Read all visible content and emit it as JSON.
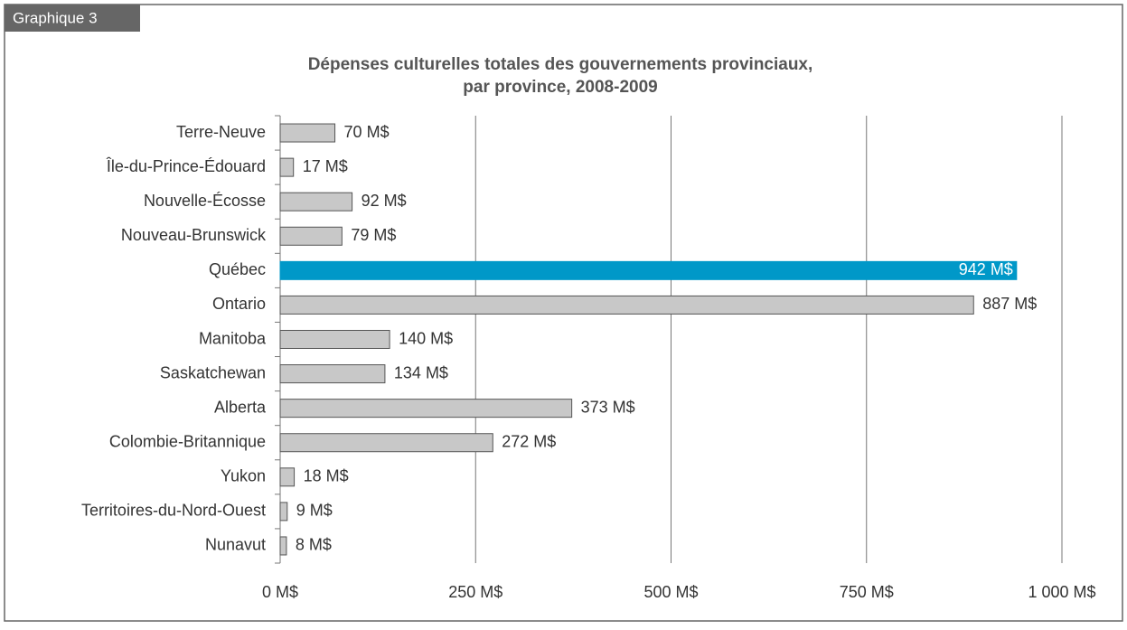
{
  "chart_data": {
    "type": "hbar",
    "figure_label": "Graphique 3",
    "title": "Dépenses culturelles totales des gouvernements provinciaux,",
    "subtitle": "par province, 2008-2009",
    "categories": [
      "Terre-Neuve",
      "Île-du-Prince-Édouard",
      "Nouvelle-Écosse",
      "Nouveau-Brunswick",
      "Québec",
      "Ontario",
      "Manitoba",
      "Saskatchewan",
      "Alberta",
      "Colombie-Britannique",
      "Yukon",
      "Territoires-du-Nord-Ouest",
      "Nunavut"
    ],
    "values": [
      70,
      17,
      92,
      79,
      942,
      887,
      140,
      134,
      373,
      272,
      18,
      9,
      8
    ],
    "value_labels": [
      "70 M$",
      "17 M$",
      "92 M$",
      "79 M$",
      "942 M$",
      "887 M$",
      "140 M$",
      "134 M$",
      "373 M$",
      "272 M$",
      "18 M$",
      "9 M$",
      "8 M$"
    ],
    "color": "#c8c8c8",
    "colors": [
      "#c8c8c8",
      "#c8c8c8",
      "#c8c8c8",
      "#c8c8c8",
      "#0098c8",
      "#c8c8c8",
      "#c8c8c8",
      "#c8c8c8",
      "#c8c8c8",
      "#c8c8c8",
      "#c8c8c8",
      "#c8c8c8",
      "#c8c8c8"
    ],
    "xlim": [
      0,
      1000
    ],
    "xticks": [
      {
        "value": 0,
        "label": "0 M$"
      },
      {
        "value": 250,
        "label": "250 M$"
      },
      {
        "value": 500,
        "label": "500 M$"
      },
      {
        "value": 750,
        "label": "750 M$"
      },
      {
        "value": 1000,
        "label": "1 000 M$"
      }
    ],
    "grid": true
  }
}
